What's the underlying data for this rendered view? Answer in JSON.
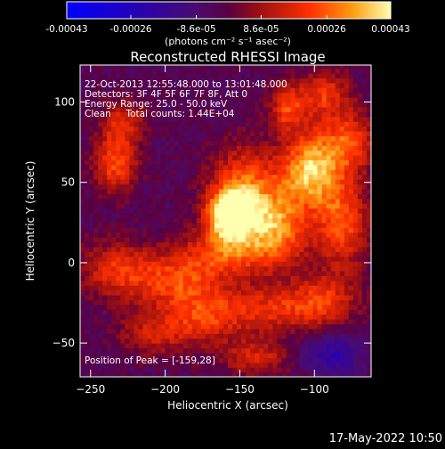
{
  "chart_data": {
    "type": "heatmap",
    "title": "Reconstructed RHESSI Image",
    "xlabel": "Heliocentric X (arcsec)",
    "ylabel": "Heliocentric Y (arcsec)",
    "xlim": [
      -257,
      -62
    ],
    "ylim": [
      -71,
      123
    ],
    "xticks": [
      -250,
      -200,
      -150,
      -100
    ],
    "yticks": [
      -50,
      0,
      50,
      100
    ],
    "colorbar": {
      "ticks": [
        "-0.00043",
        "-0.00026",
        "-8.6e-05",
        "8.6e-05",
        "0.00026",
        "0.00043"
      ],
      "range": [
        -0.00043,
        0.00043
      ],
      "unit_label": "(photons cm⁻² s⁻¹ asec⁻²)"
    },
    "annotations": [
      "22-Oct-2013 12:55:48.000 to 13:01:48.000",
      "Detectors: 3F 4F 5F 6F 7F 8F, Att 0",
      "Energy Range: 25.0 - 50.0 keV",
      "Clean     Total counts: 1.44E+04"
    ],
    "peak_label": "Position of Peak = [-159,28]",
    "peak": [
      -159,
      28
    ],
    "emission_blobs": [
      {
        "x": -159,
        "y": 28,
        "amp": 0.00043,
        "sx": 10,
        "sy": 10
      },
      {
        "x": -148,
        "y": 40,
        "amp": 0.00034,
        "sx": 16,
        "sy": 20
      },
      {
        "x": -125,
        "y": 20,
        "amp": 0.00028,
        "sx": 14,
        "sy": 16
      },
      {
        "x": -95,
        "y": 60,
        "amp": 0.00028,
        "sx": 14,
        "sy": 22
      },
      {
        "x": -82,
        "y": 20,
        "amp": 0.00024,
        "sx": 12,
        "sy": 18
      },
      {
        "x": -110,
        "y": 55,
        "amp": 0.00022,
        "sx": 12,
        "sy": 14
      },
      {
        "x": -160,
        "y": 5,
        "amp": 0.00022,
        "sx": 22,
        "sy": 10
      },
      {
        "x": -195,
        "y": -12,
        "amp": 0.00024,
        "sx": 22,
        "sy": 12
      },
      {
        "x": -235,
        "y": -5,
        "amp": 0.0002,
        "sx": 16,
        "sy": 12
      },
      {
        "x": -175,
        "y": -35,
        "amp": 0.00022,
        "sx": 18,
        "sy": 12
      },
      {
        "x": -130,
        "y": -30,
        "amp": 0.0002,
        "sx": 22,
        "sy": 10
      },
      {
        "x": -95,
        "y": -25,
        "amp": 0.0002,
        "sx": 16,
        "sy": 12
      },
      {
        "x": -235,
        "y": 60,
        "amp": 0.00026,
        "sx": 10,
        "sy": 12
      },
      {
        "x": -230,
        "y": 85,
        "amp": 0.0002,
        "sx": 10,
        "sy": 10
      },
      {
        "x": -120,
        "y": 95,
        "amp": 0.00024,
        "sx": 8,
        "sy": 10
      },
      {
        "x": -95,
        "y": 105,
        "amp": 0.0002,
        "sx": 12,
        "sy": 10
      },
      {
        "x": -75,
        "y": 75,
        "amp": 0.0002,
        "sx": 10,
        "sy": 12
      },
      {
        "x": -140,
        "y": -60,
        "amp": 0.00018,
        "sx": 16,
        "sy": 8
      },
      {
        "x": -210,
        "y": -45,
        "amp": 0.00016,
        "sx": 16,
        "sy": 10
      }
    ]
  },
  "footer": {
    "date": "17-May-2022 10:50"
  }
}
